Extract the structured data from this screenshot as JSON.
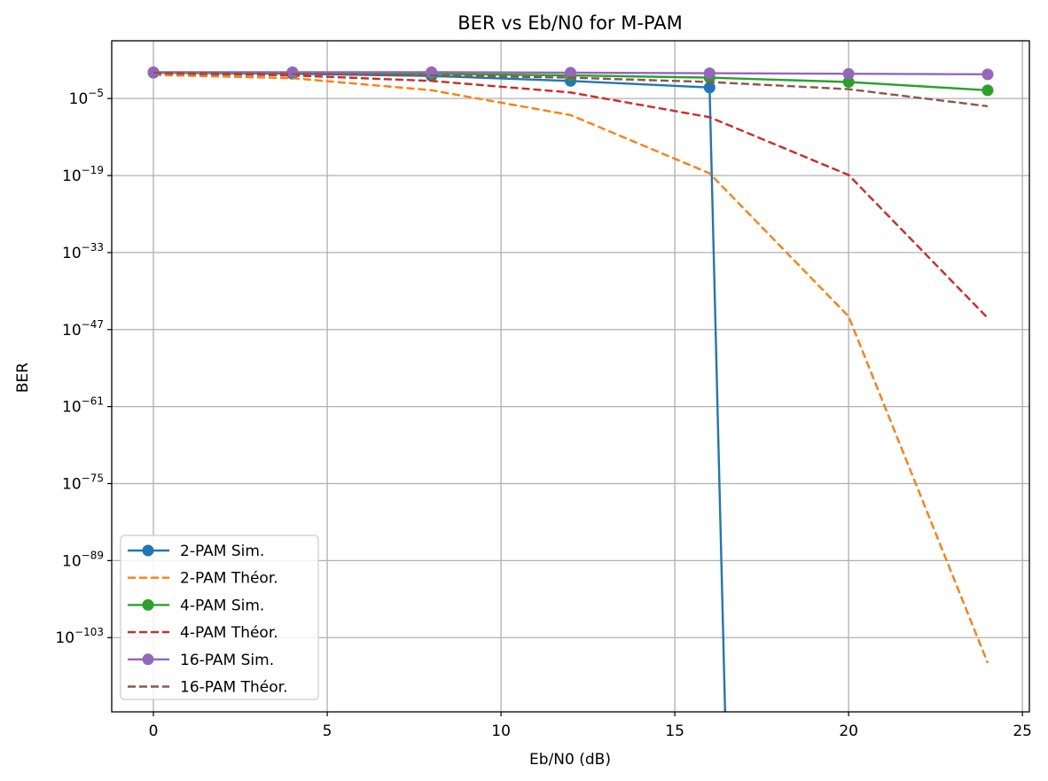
{
  "chart_data": {
    "type": "line",
    "title": "BER vs Eb/N0 for M-PAM",
    "xlabel": "Eb/N0 (dB)",
    "ylabel": "BER",
    "xlim": [
      -1.2,
      25.2
    ],
    "ylim_log10": [
      -116.5,
      5.5
    ],
    "y_scale": "log",
    "grid": true,
    "legend_position": "lower-left",
    "x_ticks": [
      0,
      5,
      10,
      15,
      20,
      25
    ],
    "y_ticks": [
      {
        "base": "10",
        "exp": "−5",
        "log": -5
      },
      {
        "base": "10",
        "exp": "−19",
        "log": -19
      },
      {
        "base": "10",
        "exp": "−33",
        "log": -33
      },
      {
        "base": "10",
        "exp": "−47",
        "log": -47
      },
      {
        "base": "10",
        "exp": "−61",
        "log": -61
      },
      {
        "base": "10",
        "exp": "−75",
        "log": -75
      },
      {
        "base": "10",
        "exp": "−89",
        "log": -89
      },
      {
        "base": "10",
        "exp": "−103",
        "log": -103
      }
    ],
    "series": [
      {
        "name": "2-PAM Sim.",
        "color": "#1f77b4",
        "style": "solid",
        "marker": true,
        "x": [
          0,
          4,
          8,
          12,
          16,
          16.5
        ],
        "log10_y": [
          -0.3,
          -0.5,
          -0.9,
          -1.8,
          -3.0,
          -130
        ]
      },
      {
        "name": "2-PAM Théor.",
        "color": "#ff7f0e",
        "style": "dashed",
        "marker": false,
        "x": [
          0,
          4,
          8,
          12,
          16,
          20,
          24
        ],
        "log10_y": [
          -0.7,
          -1.3,
          -3.5,
          -8.0,
          -18.6,
          -44.6,
          -107.6
        ]
      },
      {
        "name": "4-PAM Sim.",
        "color": "#2ca02c",
        "style": "solid",
        "marker": true,
        "x": [
          0,
          4,
          8,
          12,
          16,
          20,
          24
        ],
        "log10_y": [
          -0.3,
          -0.3,
          -0.5,
          -0.8,
          -1.2,
          -2.0,
          -3.5
        ]
      },
      {
        "name": "4-PAM Théor.",
        "color": "#d62728",
        "style": "dashed",
        "marker": false,
        "x": [
          0,
          4,
          8,
          12,
          16,
          20,
          24
        ],
        "log10_y": [
          -0.4,
          -0.8,
          -1.8,
          -3.9,
          -8.4,
          -18.9,
          -44.9
        ]
      },
      {
        "name": "16-PAM Sim.",
        "color": "#9467bd",
        "style": "solid",
        "marker": true,
        "x": [
          0,
          4,
          8,
          12,
          16,
          20,
          24
        ],
        "log10_y": [
          -0.2,
          -0.2,
          -0.2,
          -0.3,
          -0.4,
          -0.5,
          -0.6
        ]
      },
      {
        "name": "16-PAM Théor.",
        "color": "#8c564b",
        "style": "dashed",
        "marker": false,
        "x": [
          0,
          4,
          8,
          12,
          16,
          20,
          24
        ],
        "log10_y": [
          -0.3,
          -0.5,
          -0.8,
          -1.2,
          -2.0,
          -3.3,
          -6.4
        ]
      }
    ]
  }
}
